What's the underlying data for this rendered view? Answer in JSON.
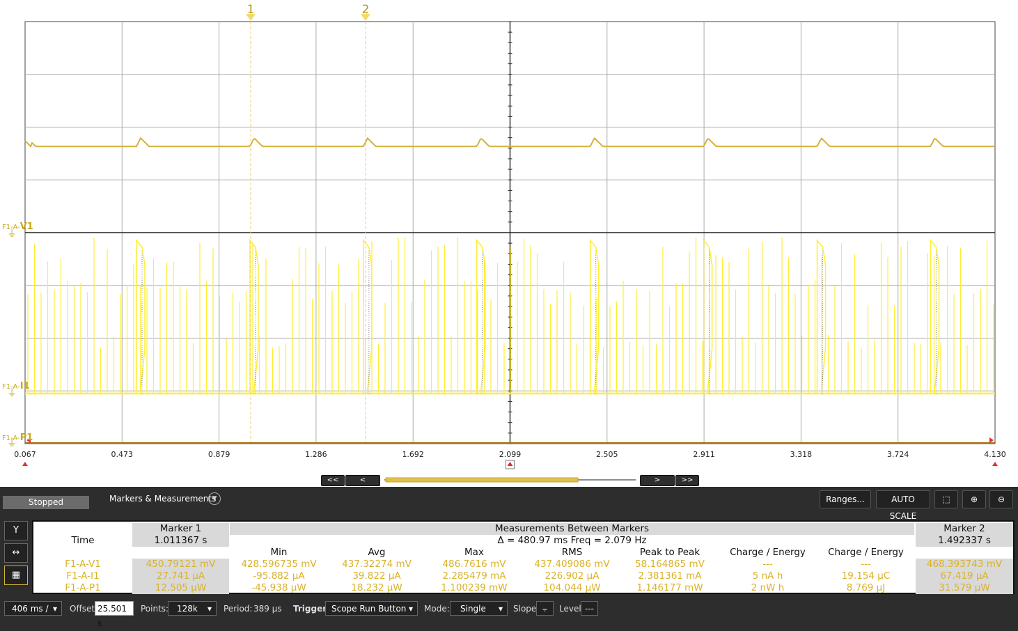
{
  "scope": {
    "x_ticks": [
      "0.067",
      "0.473",
      "0.879",
      "1.286",
      "1.692",
      "2.099",
      "2.505",
      "2.911",
      "3.318",
      "3.724",
      "4.130"
    ],
    "marker_labels": [
      "1",
      "2"
    ],
    "channels": [
      {
        "prefix": "F1-A-",
        "name": "V1"
      },
      {
        "prefix": "F1-A-",
        "name": "I1"
      },
      {
        "prefix": "F1-A-",
        "name": "P1"
      }
    ],
    "nav": {
      "first": "<<",
      "prev": "<",
      "next": ">",
      "last": ">>"
    },
    "trace_color": "#ffee33",
    "voltage_color": "#d4b23a"
  },
  "toolbar": {
    "status": "Stopped",
    "markers_title": "Markers & Measurements",
    "ranges": "Ranges...",
    "auto_scale": "AUTO SCALE"
  },
  "measurements": {
    "marker1_header": "Marker 1",
    "between_header": "Measurements Between Markers",
    "marker2_header": "Marker 2",
    "time_label": "Time",
    "marker1_time": "1.011367 s",
    "delta": "Δ = 480.97 ms   Freq = 2.079 Hz",
    "marker2_time": "1.492337 s",
    "columns": [
      "Min",
      "Avg",
      "Max",
      "RMS",
      "Peak to Peak",
      "Charge / Energy",
      "Charge / Energy"
    ],
    "rows": [
      {
        "name": "F1-A-V1",
        "m1": "450.79121 mV",
        "vals": [
          "428.596735 mV",
          "437.32274 mV",
          "486.7616 mV",
          "437.409086 mV",
          "58.164865 mV",
          "---",
          "---"
        ],
        "m2": "468.393743 mV"
      },
      {
        "name": "F1-A-I1",
        "m1": "27.741 µA",
        "vals": [
          "-95.882 µA",
          "39.822 µA",
          "2.285479 mA",
          "226.902 µA",
          "2.381361 mA",
          "5 nA h",
          "19.154 µC"
        ],
        "m2": "67.419 µA"
      },
      {
        "name": "F1-A-P1",
        "m1": "12.505 µW",
        "vals": [
          "-45.938 µW",
          "18.232 µW",
          "1.100239 mW",
          "104.044 µW",
          "1.146177 mW",
          "2 nW h",
          "8.769 µJ"
        ],
        "m2": "31.579 µW"
      }
    ]
  },
  "bottom": {
    "timebase": "406 ms /",
    "offset_label": "Offset:",
    "offset_value": "25.501 s",
    "points_label": "Points:",
    "points_value": "128k",
    "period_label": "Period:",
    "period_value": "389 µs",
    "trigger_label": "Trigger",
    "trigger_value": "Scope Run Button",
    "mode_label": "Mode:",
    "mode_value": "Single",
    "slope_label": "Slope:",
    "level_label": "Level:",
    "level_value": "---"
  }
}
